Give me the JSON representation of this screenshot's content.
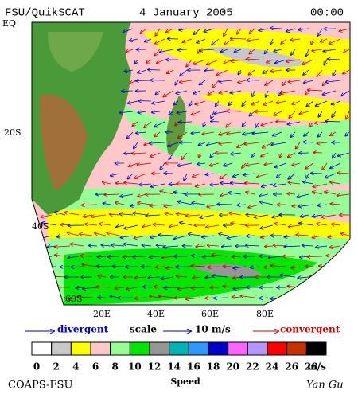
{
  "header": {
    "left": "FSU/QuikSCAT",
    "date": "4 January 2005",
    "time": "00:00"
  },
  "lat_labels": [
    "EQ",
    "20S",
    "40S",
    "60S"
  ],
  "lon_labels": [
    "20E",
    "40E",
    "60E",
    "80E"
  ],
  "legend": {
    "divergent": "divergent",
    "scale": "scale",
    "scale_value": "10 m/s",
    "convergent": "convergent"
  },
  "color_scale": {
    "colors": [
      "#ffffff",
      "#c8c8c8",
      "#ffff00",
      "#ffc8c8",
      "#96ff96",
      "#00e600",
      "#969696",
      "#00b4b4",
      "#3296ff",
      "#0000c8",
      "#ff64ff",
      "#b496ff",
      "#ff0000",
      "#c83200",
      "#000000"
    ],
    "labels": [
      0,
      2,
      4,
      6,
      8,
      10,
      12,
      14,
      16,
      18,
      20,
      22,
      24,
      26,
      28
    ],
    "unit": "m/s",
    "title": "Speed"
  },
  "footer": {
    "left": "COAPS-FSU",
    "right": "Yan Gu"
  }
}
